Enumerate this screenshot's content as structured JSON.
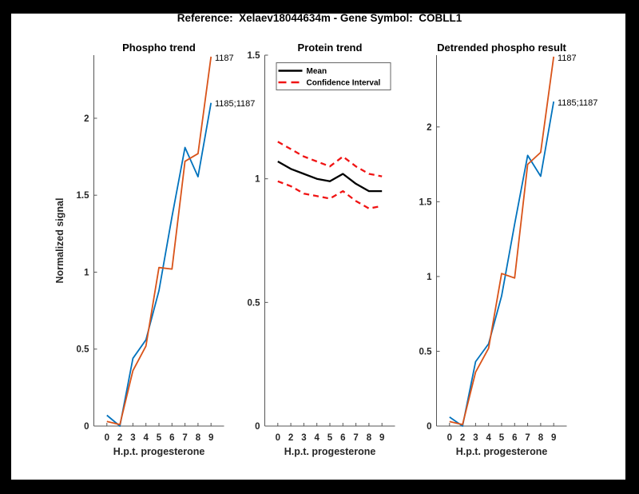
{
  "figure_title": "Reference:  Xelaev18044634m - Gene Symbol:  COBLL1",
  "colors": {
    "blue": "#0072BD",
    "orange": "#D95319",
    "red": "#F01414",
    "black": "#000000",
    "background": "#000000",
    "paper": "#FFFFFF"
  },
  "chart_data": [
    {
      "type": "line",
      "title": "Phospho trend",
      "xlabel": "H.p.t. progesterone",
      "ylabel": "Normalized signal",
      "categories": [
        "0",
        "2",
        "3",
        "4",
        "5",
        "6",
        "7",
        "8",
        "9"
      ],
      "ylim": [
        0,
        2.41
      ],
      "yticks": [
        0,
        0.5,
        1,
        1.5,
        2
      ],
      "grid": false,
      "series": [
        {
          "name": "1185;1187",
          "color_key": "blue",
          "dashed": false,
          "thick": false,
          "values": [
            0.07,
            0.0,
            0.44,
            0.56,
            0.88,
            1.36,
            1.81,
            1.62,
            2.1
          ]
        },
        {
          "name": "1187",
          "color_key": "orange",
          "dashed": false,
          "thick": false,
          "values": [
            0.03,
            0.01,
            0.36,
            0.52,
            1.03,
            1.02,
            1.72,
            1.77,
            2.4
          ]
        }
      ]
    },
    {
      "type": "line",
      "title": "Protein trend",
      "xlabel": "H.p.t. progesterone",
      "ylabel": "",
      "categories": [
        "0",
        "2",
        "3",
        "4",
        "5",
        "6",
        "7",
        "8",
        "9"
      ],
      "ylim": [
        0,
        1.5
      ],
      "yticks": [
        0,
        0.5,
        1,
        1.5
      ],
      "grid": false,
      "legend": [
        {
          "label": "Mean",
          "style": "solid-black"
        },
        {
          "label": "Confidence Interval",
          "style": "dashed-red"
        }
      ],
      "series": [
        {
          "name": "Mean",
          "color_key": "black",
          "dashed": false,
          "thick": true,
          "values": [
            1.07,
            1.04,
            1.02,
            1.0,
            0.99,
            1.02,
            0.98,
            0.95,
            0.95
          ]
        },
        {
          "name": "Confidence Interval upper",
          "color_key": "red",
          "dashed": true,
          "thick": true,
          "values": [
            1.15,
            1.12,
            1.09,
            1.07,
            1.05,
            1.09,
            1.05,
            1.02,
            1.01
          ]
        },
        {
          "name": "Confidence Interval lower",
          "color_key": "red",
          "dashed": true,
          "thick": true,
          "values": [
            0.99,
            0.97,
            0.94,
            0.93,
            0.92,
            0.95,
            0.91,
            0.88,
            0.89
          ]
        }
      ]
    },
    {
      "type": "line",
      "title": "Detrended phospho result",
      "xlabel": "H.p.t. progesterone",
      "ylabel": "",
      "categories": [
        "0",
        "2",
        "3",
        "4",
        "5",
        "6",
        "7",
        "8",
        "9"
      ],
      "ylim": [
        0,
        2.48
      ],
      "yticks": [
        0,
        0.5,
        1,
        1.5,
        2
      ],
      "grid": false,
      "series": [
        {
          "name": "1185;1187",
          "color_key": "blue",
          "dashed": false,
          "thick": false,
          "values": [
            0.06,
            0.0,
            0.43,
            0.55,
            0.87,
            1.35,
            1.81,
            1.67,
            2.17
          ]
        },
        {
          "name": "1187",
          "color_key": "orange",
          "dashed": false,
          "thick": false,
          "values": [
            0.03,
            0.01,
            0.36,
            0.52,
            1.02,
            0.99,
            1.75,
            1.83,
            2.47
          ]
        }
      ]
    }
  ]
}
